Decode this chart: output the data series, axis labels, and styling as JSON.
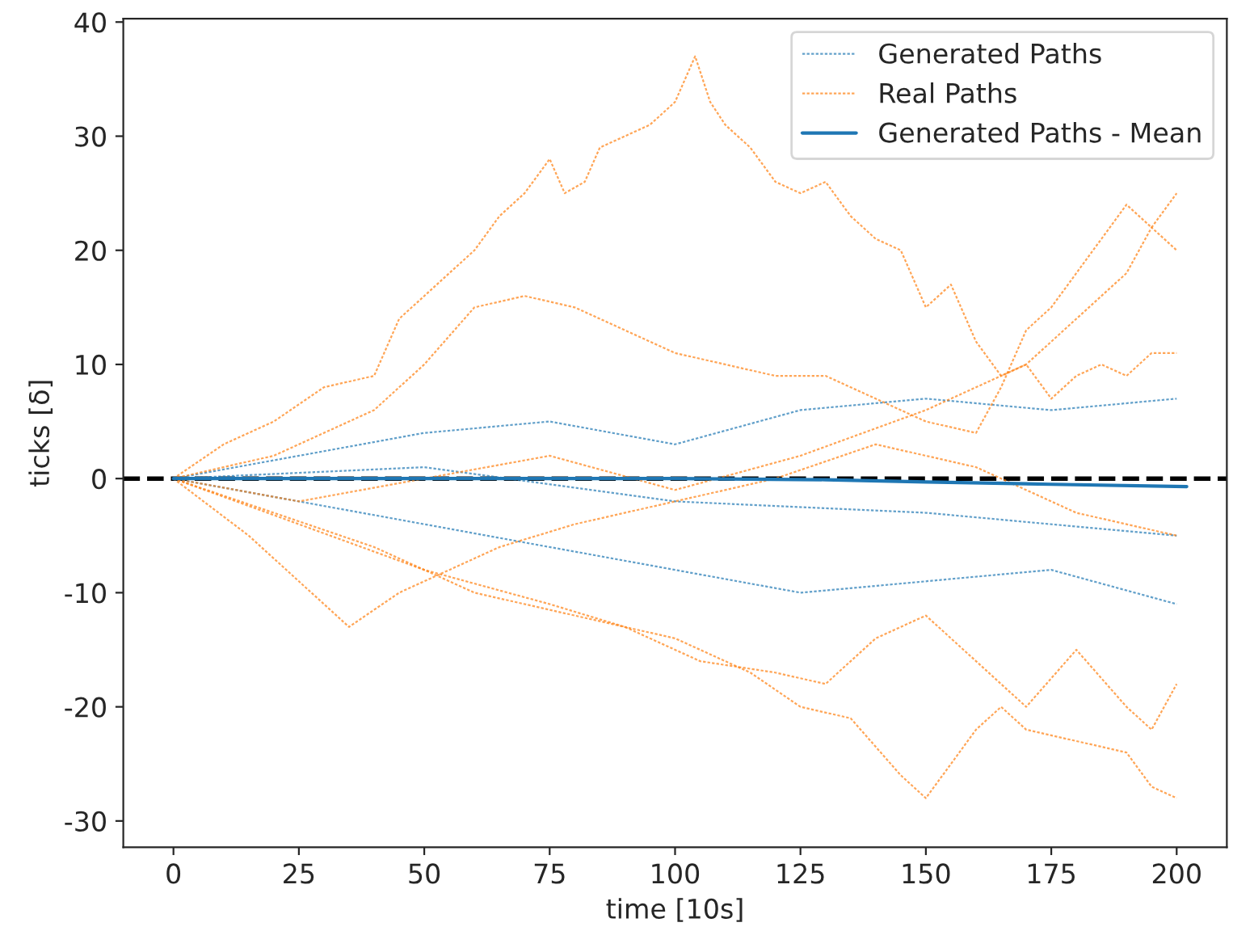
{
  "chart_data": {
    "type": "line",
    "xlabel": "time [10s]",
    "ylabel": "ticks [δ]",
    "xlim": [
      -10,
      210
    ],
    "ylim": [
      -32.3,
      40.3
    ],
    "xticks": [
      0,
      25,
      50,
      75,
      100,
      125,
      150,
      175,
      200
    ],
    "yticks": [
      -30,
      -20,
      -10,
      0,
      10,
      20,
      30,
      40
    ],
    "grid": false,
    "legend": "top right",
    "marker": "none",
    "ref_lines": [
      {
        "axis": "y",
        "value": 0,
        "color": "#000000",
        "line_style": "dashed"
      }
    ],
    "series": [
      {
        "name": "Generated Paths",
        "color": "#1f77b4",
        "line_style": "dotted",
        "x": [
          0,
          25,
          50,
          75,
          100,
          125,
          150,
          175,
          200
        ],
        "values": [
          0,
          2,
          4,
          5,
          3,
          6,
          7,
          6,
          7
        ]
      },
      {
        "color": "#1f77b4",
        "line_style": "dotted",
        "x": [
          0,
          25,
          50,
          75,
          100,
          125,
          150,
          175,
          200
        ],
        "values": [
          0,
          -2,
          -4,
          -6,
          -8,
          -10,
          -9,
          -8,
          -11
        ]
      },
      {
        "color": "#1f77b4",
        "line_style": "dotted",
        "x": [
          0,
          50,
          100,
          150,
          200
        ],
        "values": [
          0,
          1,
          -2,
          -3,
          -5
        ]
      },
      {
        "name": "Real Paths",
        "color": "#ff7f0e",
        "line_style": "dotted",
        "x": [
          0,
          10,
          20,
          30,
          40,
          45,
          50,
          55,
          60,
          65,
          70,
          75,
          78,
          82,
          85,
          90,
          95,
          100,
          104,
          107,
          110,
          115,
          120,
          125,
          130,
          135,
          140,
          145,
          150,
          155,
          160,
          165,
          170,
          175,
          180,
          185,
          190,
          195,
          200
        ],
        "values": [
          0,
          3,
          5,
          8,
          9,
          14,
          16,
          18,
          20,
          23,
          25,
          28,
          25,
          26,
          29,
          30,
          31,
          33,
          37,
          33,
          31,
          29,
          26,
          25,
          26,
          23,
          21,
          20,
          15,
          17,
          12,
          9,
          10,
          7,
          9,
          10,
          9,
          11,
          11
        ]
      },
      {
        "color": "#ff7f0e",
        "line_style": "dotted",
        "x": [
          0,
          20,
          40,
          50,
          60,
          70,
          80,
          90,
          100,
          110,
          120,
          130,
          140,
          150,
          160,
          165,
          170,
          175,
          180,
          185,
          190,
          195,
          200
        ],
        "values": [
          0,
          2,
          6,
          10,
          15,
          16,
          15,
          13,
          11,
          10,
          9,
          9,
          7,
          5,
          4,
          8,
          13,
          15,
          18,
          21,
          24,
          22,
          25
        ]
      },
      {
        "color": "#ff7f0e",
        "line_style": "dotted",
        "x": [
          0,
          25,
          50,
          75,
          100,
          125,
          150,
          170,
          180,
          190,
          195,
          200
        ],
        "values": [
          0,
          -2,
          0,
          2,
          -1,
          2,
          6,
          10,
          14,
          18,
          22,
          20
        ]
      },
      {
        "color": "#ff7f0e",
        "line_style": "dotted",
        "x": [
          0,
          20,
          40,
          60,
          80,
          100,
          115,
          125,
          135,
          145,
          150,
          155,
          160,
          165,
          170,
          180,
          190,
          195,
          200
        ],
        "values": [
          0,
          -3,
          -6,
          -10,
          -12,
          -14,
          -17,
          -20,
          -21,
          -26,
          -28,
          -25,
          -22,
          -20,
          -22,
          -23,
          -24,
          -27,
          -28
        ]
      },
      {
        "color": "#ff7f0e",
        "line_style": "dotted",
        "x": [
          0,
          25,
          50,
          75,
          90,
          105,
          120,
          130,
          140,
          150,
          160,
          170,
          180,
          190,
          195,
          200
        ],
        "values": [
          0,
          -4,
          -8,
          -11,
          -13,
          -16,
          -17,
          -18,
          -14,
          -12,
          -16,
          -20,
          -15,
          -20,
          -22,
          -18
        ]
      },
      {
        "color": "#ff7f0e",
        "line_style": "dotted",
        "x": [
          0,
          15,
          25,
          35,
          45,
          55,
          65,
          80,
          100,
          120,
          140,
          160,
          180,
          200
        ],
        "values": [
          0,
          -5,
          -9,
          -13,
          -10,
          -8,
          -6,
          -4,
          -2,
          0,
          3,
          1,
          -3,
          -5
        ]
      },
      {
        "name": "Generated Paths - Mean",
        "color": "#1f77b4",
        "line_style": "solid",
        "x": [
          0,
          50,
          100,
          130,
          150,
          175,
          202
        ],
        "values": [
          0,
          0,
          0,
          -0.1,
          -0.3,
          -0.5,
          -0.7
        ]
      }
    ]
  }
}
